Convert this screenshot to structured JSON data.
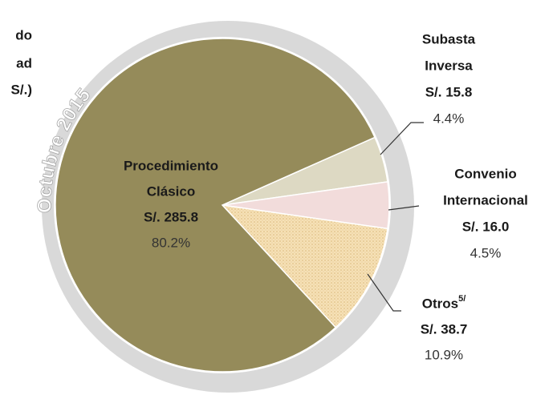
{
  "title_lines": [
    "do",
    "ad",
    "S/.)"
  ],
  "ring_label": "Octubre 2015",
  "chart_data": {
    "type": "pie",
    "categories": [
      "Subasta Inversa",
      "Convenio Internacional",
      "Otros",
      "Procedimiento Clásico"
    ],
    "footnotes": [
      null,
      null,
      "5/",
      null
    ],
    "values": [
      15.8,
      16.0,
      38.7,
      285.8
    ],
    "value_labels": [
      "S/. 15.8",
      "S/. 16.0",
      "S/. 38.7",
      "S/. 285.8"
    ],
    "percents": [
      4.4,
      4.5,
      10.9,
      80.2
    ],
    "percent_labels": [
      "4.4%",
      "4.5%",
      "10.9%",
      "80.2%"
    ],
    "colors": [
      "#ddd9c3",
      "#f2dcdb",
      "#f3d9a6",
      "#958b5a"
    ]
  }
}
